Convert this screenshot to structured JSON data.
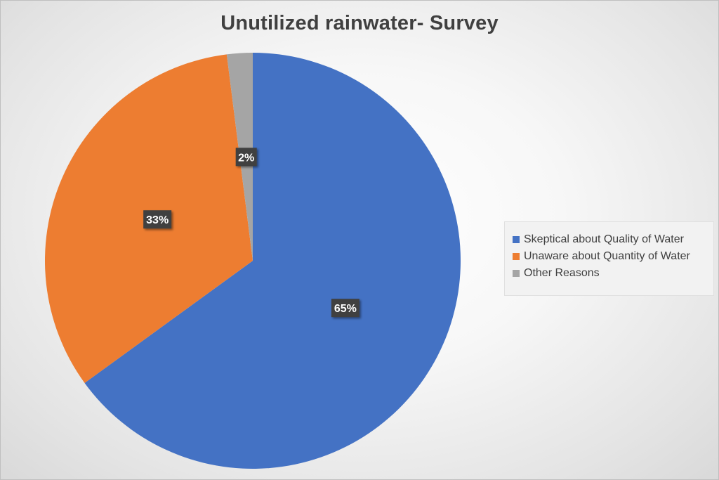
{
  "chart_data": {
    "type": "pie",
    "title": "Unutilized rainwater- Survey",
    "categories": [
      "Skeptical about Quality of Water",
      "Unaware about Quantity of Water",
      "Other Reasons"
    ],
    "values": [
      65,
      33,
      2
    ],
    "data_labels": [
      "65%",
      "33%",
      "2%"
    ],
    "colors": [
      "#4472C4",
      "#ED7D31",
      "#A5A5A5"
    ],
    "legend_position": "right"
  }
}
